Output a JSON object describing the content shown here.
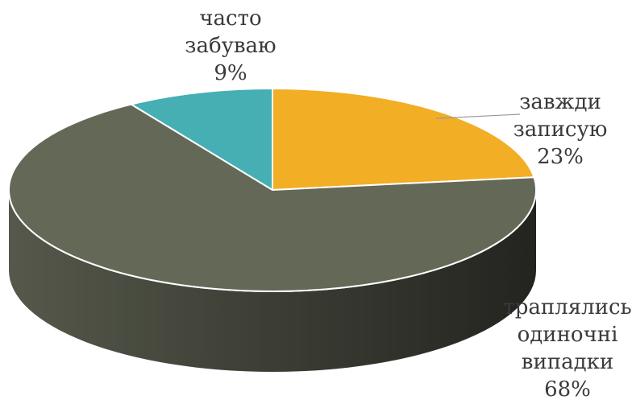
{
  "chart_data": {
    "type": "pie",
    "style": "3d",
    "start_angle_deg": 0,
    "direction": "clockwise",
    "slices": [
      {
        "label_lines": [
          "завжди",
          "записую"
        ],
        "value": 23,
        "value_label": "23%",
        "color": "#F2AE24"
      },
      {
        "label_lines": [
          "траплялись",
          "одиночні",
          "випадки"
        ],
        "value": 68,
        "value_label": "68%",
        "color": "#646857"
      },
      {
        "label_lines": [
          "часто",
          "забуваю"
        ],
        "value": 9,
        "value_label": "9%",
        "color": "#45AFB4"
      }
    ],
    "side_color_top": "#41433a",
    "side_color_bottom": "#2b2c25"
  }
}
